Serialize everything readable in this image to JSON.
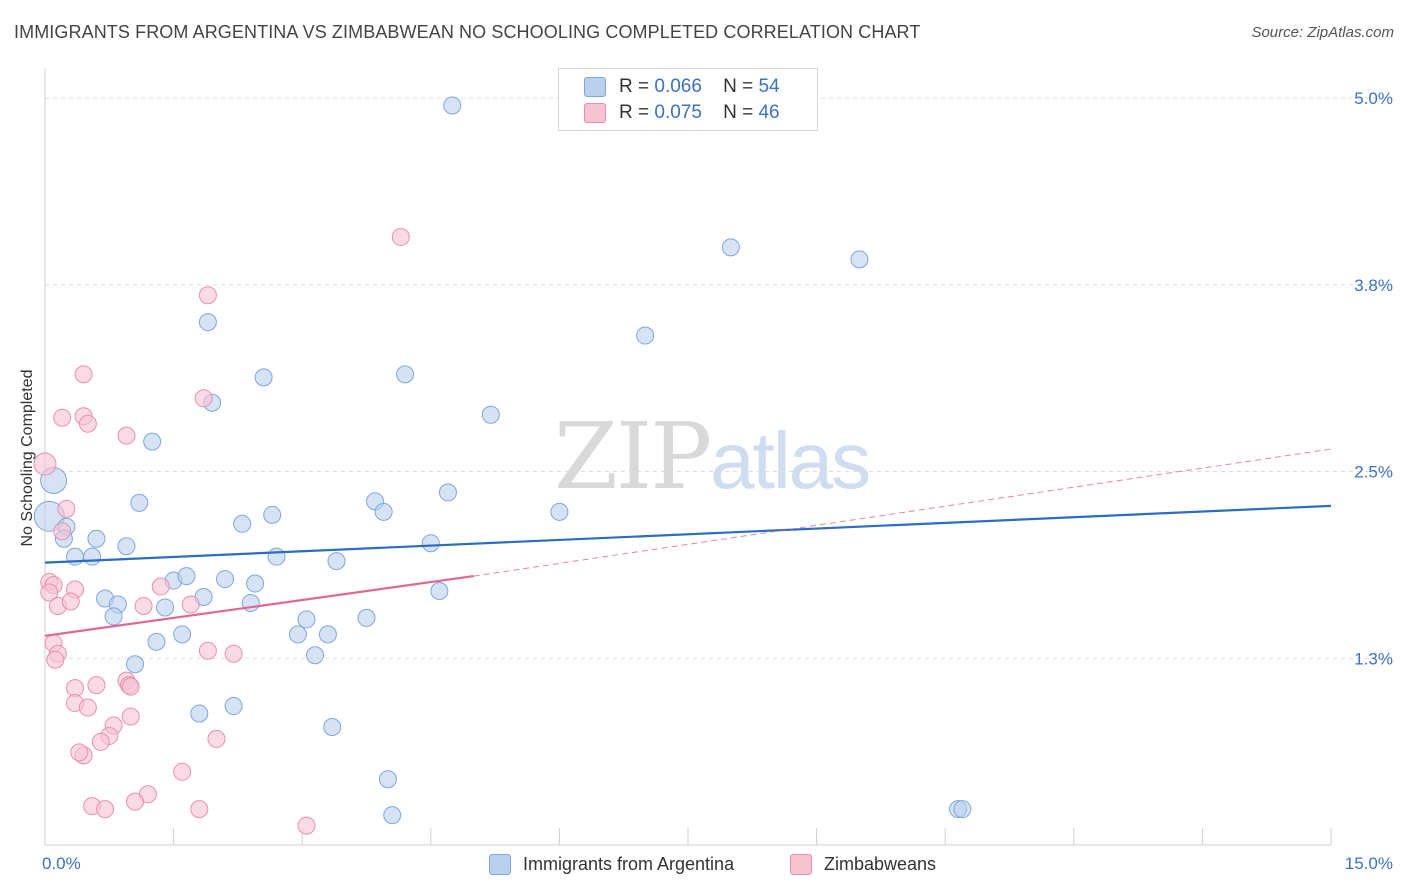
{
  "title": "IMMIGRANTS FROM ARGENTINA VS ZIMBABWEAN NO SCHOOLING COMPLETED CORRELATION CHART",
  "source": "Source: ZipAtlas.com",
  "watermark": {
    "part1": "ZIP",
    "part2": "atlas"
  },
  "colors": {
    "blue_fill": "#b9d0ee",
    "blue_stroke": "#7ea7dc",
    "blue_line": "#2b6cc4",
    "pink_fill": "#f7c3d3",
    "pink_stroke": "#ea8fae",
    "pink_line": "#e06790",
    "grid": "#dddddd",
    "tick_text": "#3b72c0"
  },
  "legend_top": [
    {
      "r_label": "R =",
      "r_value": "0.066",
      "n_label": "N =",
      "n_value": "54"
    },
    {
      "r_label": "R =",
      "r_value": "0.075",
      "n_label": "N =",
      "n_value": "46"
    }
  ],
  "legend_bottom": [
    "Immigrants from Argentina",
    "Zimbabweans"
  ],
  "chart_data": {
    "type": "scatter",
    "title": "IMMIGRANTS FROM ARGENTINA VS ZIMBABWEAN NO SCHOOLING COMPLETED CORRELATION CHART",
    "xlabel": "",
    "ylabel": "No Schooling Completed",
    "xlim": [
      0,
      15
    ],
    "ylim": [
      0,
      5.2
    ],
    "x_ticks": [
      0,
      1.5,
      3,
      4.5,
      6,
      7.5,
      9,
      10.5,
      12,
      13.5,
      15
    ],
    "x_tick_labels": {
      "0": "0.0%",
      "15": "15.0%"
    },
    "y_ticks": [
      1.25,
      2.5,
      3.75,
      5.0
    ],
    "y_tick_labels": [
      "1.3%",
      "2.5%",
      "3.8%",
      "5.0%"
    ],
    "grid": true,
    "series": [
      {
        "name": "Immigrants from Argentina",
        "r": 0.066,
        "n": 54,
        "trend": {
          "x0": 0,
          "y0": 1.89,
          "x1": 15,
          "y1": 2.27,
          "dashed_to": null
        },
        "points": [
          [
            0.1,
            2.44
          ],
          [
            0.05,
            2.2
          ],
          [
            0.25,
            2.13
          ],
          [
            0.22,
            2.05
          ],
          [
            0.6,
            2.05
          ],
          [
            0.35,
            1.93
          ],
          [
            0.55,
            1.93
          ],
          [
            0.95,
            2.0
          ],
          [
            1.1,
            2.29
          ],
          [
            1.25,
            2.7
          ],
          [
            0.7,
            1.65
          ],
          [
            0.85,
            1.61
          ],
          [
            0.8,
            1.53
          ],
          [
            1.4,
            1.59
          ],
          [
            1.5,
            1.77
          ],
          [
            1.65,
            1.8
          ],
          [
            1.85,
            1.66
          ],
          [
            2.1,
            1.78
          ],
          [
            2.45,
            1.75
          ],
          [
            2.4,
            1.62
          ],
          [
            1.6,
            1.41
          ],
          [
            1.3,
            1.36
          ],
          [
            1.05,
            1.21
          ],
          [
            2.3,
            2.15
          ],
          [
            2.65,
            2.21
          ],
          [
            2.7,
            1.93
          ],
          [
            2.95,
            1.41
          ],
          [
            3.05,
            1.51
          ],
          [
            3.15,
            1.27
          ],
          [
            3.3,
            1.41
          ],
          [
            3.4,
            1.9
          ],
          [
            3.75,
            1.52
          ],
          [
            3.85,
            2.3
          ],
          [
            3.95,
            2.23
          ],
          [
            4.5,
            2.02
          ],
          [
            4.6,
            1.7
          ],
          [
            4.7,
            2.36
          ],
          [
            5.2,
            2.88
          ],
          [
            6.0,
            2.23
          ],
          [
            4.2,
            3.15
          ],
          [
            2.55,
            3.13
          ],
          [
            1.9,
            3.5
          ],
          [
            1.95,
            2.96
          ],
          [
            7.0,
            3.41
          ],
          [
            8.0,
            4.0
          ],
          [
            9.5,
            3.92
          ],
          [
            4.75,
            4.95
          ],
          [
            1.8,
            0.88
          ],
          [
            2.2,
            0.93
          ],
          [
            3.35,
            0.79
          ],
          [
            4.0,
            0.44
          ],
          [
            4.05,
            0.2
          ],
          [
            10.65,
            0.24
          ],
          [
            10.7,
            0.24
          ]
        ]
      },
      {
        "name": "Zimbabweans",
        "r": 0.075,
        "n": 46,
        "trend": {
          "x0": 0,
          "y0": 1.4,
          "x1": 5.0,
          "y1": 1.8,
          "dashed_to": {
            "x": 15,
            "y": 2.65
          }
        },
        "points": [
          [
            0.0,
            2.55
          ],
          [
            0.25,
            2.25
          ],
          [
            0.2,
            2.1
          ],
          [
            0.2,
            2.86
          ],
          [
            0.45,
            2.87
          ],
          [
            0.5,
            2.82
          ],
          [
            0.45,
            3.15
          ],
          [
            0.95,
            2.74
          ],
          [
            0.05,
            1.76
          ],
          [
            0.1,
            1.74
          ],
          [
            0.05,
            1.69
          ],
          [
            0.15,
            1.6
          ],
          [
            0.35,
            1.71
          ],
          [
            0.3,
            1.63
          ],
          [
            1.15,
            1.6
          ],
          [
            1.35,
            1.73
          ],
          [
            1.7,
            1.61
          ],
          [
            0.1,
            1.35
          ],
          [
            0.15,
            1.28
          ],
          [
            0.12,
            1.24
          ],
          [
            0.35,
            1.05
          ],
          [
            0.6,
            1.07
          ],
          [
            0.95,
            1.1
          ],
          [
            0.98,
            1.07
          ],
          [
            1.0,
            1.06
          ],
          [
            1.9,
            1.3
          ],
          [
            2.2,
            1.28
          ],
          [
            0.35,
            0.95
          ],
          [
            0.5,
            0.92
          ],
          [
            0.8,
            0.8
          ],
          [
            1.0,
            0.86
          ],
          [
            0.75,
            0.73
          ],
          [
            0.65,
            0.69
          ],
          [
            0.45,
            0.6
          ],
          [
            0.4,
            0.62
          ],
          [
            2.0,
            0.71
          ],
          [
            1.6,
            0.49
          ],
          [
            1.2,
            0.34
          ],
          [
            1.05,
            0.29
          ],
          [
            0.55,
            0.26
          ],
          [
            0.7,
            0.24
          ],
          [
            1.8,
            0.24
          ],
          [
            3.05,
            0.13
          ],
          [
            1.9,
            3.68
          ],
          [
            1.85,
            2.99
          ],
          [
            4.15,
            4.07
          ]
        ]
      }
    ]
  }
}
